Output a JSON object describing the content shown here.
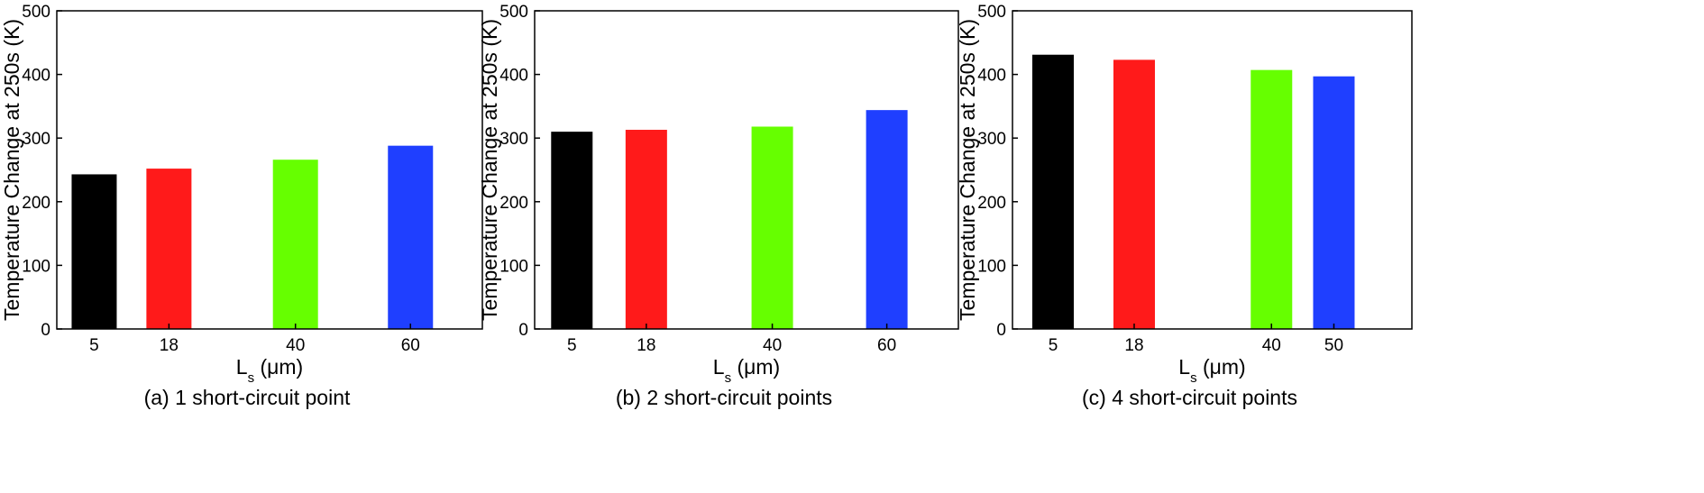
{
  "chart_data": [
    {
      "type": "bar",
      "caption": "(a) 1 short-circuit point",
      "xlabel_main": "L",
      "xlabel_sub": "s",
      "xlabel_unit": " (μm)",
      "ylabel": "Temperature Change at 250s (K)",
      "ylim": [
        0,
        500
      ],
      "yticks": [
        0,
        100,
        200,
        300,
        400,
        500
      ],
      "xlim": [
        -1.5,
        72.5
      ],
      "categories": [
        "5",
        "18",
        "40",
        "60"
      ],
      "x": [
        5,
        18,
        40,
        60
      ],
      "values": [
        243,
        252,
        266,
        288
      ],
      "colors": [
        "#000000",
        "#ff1a1a",
        "#66ff00",
        "#1f3fff"
      ],
      "grid": false
    },
    {
      "type": "bar",
      "caption": "(b) 2 short-circuit points",
      "xlabel_main": "L",
      "xlabel_sub": "s",
      "xlabel_unit": " (μm)",
      "ylabel": "Temperature Change at 250s (K)",
      "ylim": [
        0,
        500
      ],
      "yticks": [
        0,
        100,
        200,
        300,
        400,
        500
      ],
      "xlim": [
        -1.5,
        72.5
      ],
      "categories": [
        "5",
        "18",
        "40",
        "60"
      ],
      "x": [
        5,
        18,
        40,
        60
      ],
      "values": [
        310,
        313,
        318,
        344
      ],
      "colors": [
        "#000000",
        "#ff1a1a",
        "#66ff00",
        "#1f3fff"
      ],
      "grid": false
    },
    {
      "type": "bar",
      "caption": "(c) 4 short-circuit points",
      "xlabel_main": "L",
      "xlabel_sub": "s",
      "xlabel_unit": " (μm)",
      "ylabel": "Temperature Change at 250s (K)",
      "ylim": [
        0,
        500
      ],
      "yticks": [
        0,
        100,
        200,
        300,
        400,
        500
      ],
      "xlim": [
        -1.5,
        62.5
      ],
      "categories": [
        "5",
        "18",
        "40",
        "50"
      ],
      "x": [
        5,
        18,
        40,
        50
      ],
      "values": [
        431,
        423,
        407,
        397
      ],
      "colors": [
        "#000000",
        "#ff1a1a",
        "#66ff00",
        "#1f3fff"
      ],
      "grid": false
    }
  ]
}
